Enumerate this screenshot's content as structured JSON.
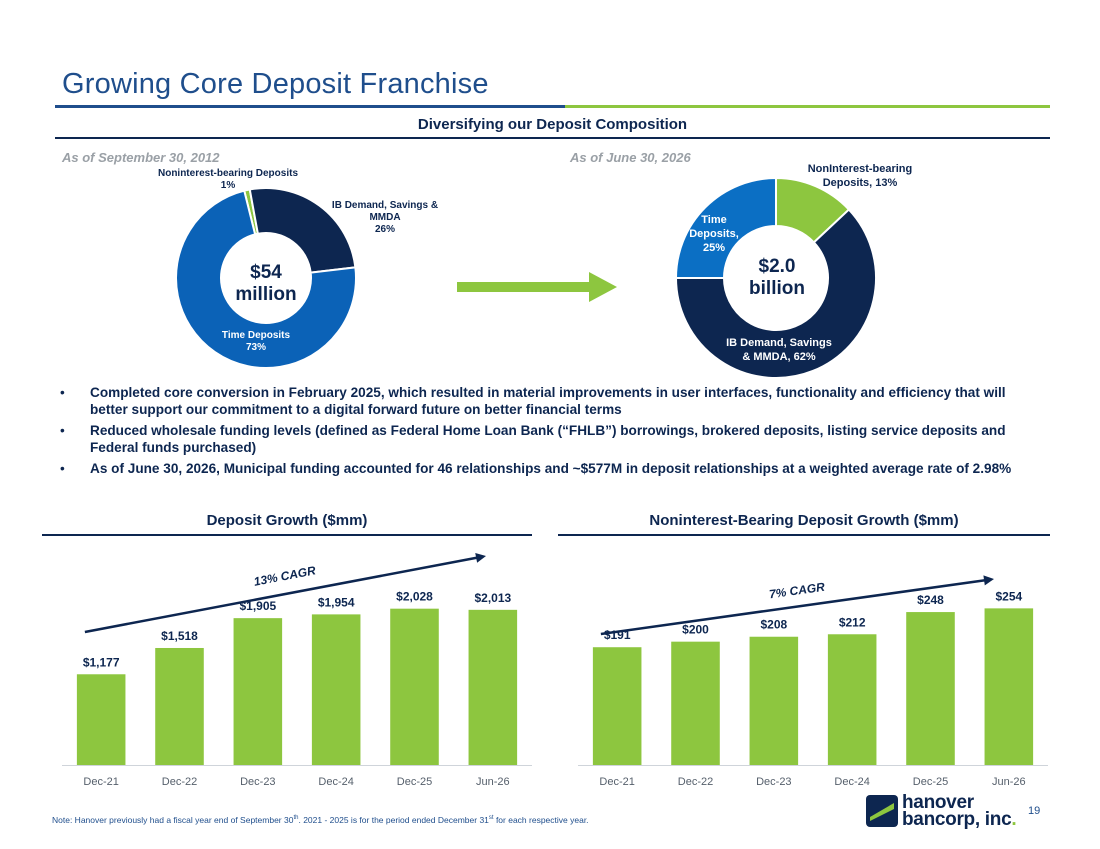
{
  "header": {
    "title": "Growing Core Deposit Franchise"
  },
  "composition": {
    "heading": "Diversifying our Deposit Composition",
    "left": {
      "as_of": "As of September 30, 2012",
      "center": [
        "$54",
        "million"
      ],
      "slices": [
        {
          "name": "Noninterest-bearing Deposits",
          "pct": 1,
          "pct_label": "1%",
          "color": "#8dc63f"
        },
        {
          "name": "IB Demand, Savings & MMDA",
          "pct": 26,
          "pct_label": "26%",
          "color": "#0d2650"
        },
        {
          "name": "Time Deposits",
          "pct": 73,
          "pct_label": "73%",
          "color": "#0b62b7"
        }
      ],
      "labels": {
        "nib_line1": "Noninterest-bearing Deposits",
        "nib_line2": "1%",
        "ib_line1": "IB Demand, Savings &",
        "ib_line2": "MMDA",
        "ib_line3": "26%",
        "td_line1": "Time Deposits",
        "td_line2": "73%"
      }
    },
    "right": {
      "as_of": "As of June 30, 2026",
      "center": [
        "$2.0",
        "billion"
      ],
      "slices": [
        {
          "name": "NonInterest-bearing Deposits",
          "pct": 13,
          "pct_label": "13%",
          "color": "#8dc63f"
        },
        {
          "name": "IB Demand, Savings & MMDA",
          "pct": 62,
          "pct_label": "62%",
          "color": "#0d2650"
        },
        {
          "name": "Time Deposits",
          "pct": 25,
          "pct_label": "25%",
          "color": "#0b6fc4"
        }
      ],
      "labels": {
        "nib_line1": "NonInterest-bearing",
        "nib_line2": "Deposits, 13%",
        "ib_line1": "IB Demand, Savings",
        "ib_line2": "& MMDA, 62%",
        "td_line1": "Time",
        "td_line2": "Deposits,",
        "td_line3": "25%"
      }
    }
  },
  "bullets": [
    "Completed core conversion in February 2025, which resulted in material improvements in user interfaces, functionality and efficiency that will better support our commitment to a digital forward future on better financial terms",
    "Reduced wholesale funding levels (defined as Federal Home Loan Bank (“FHLB”) borrowings, brokered deposits, listing service deposits and Federal funds purchased)",
    "As of June 30, 2026, Municipal funding accounted for 46 relationships and ~$577M in deposit relationships at a weighted average rate of 2.98%"
  ],
  "chart_data": [
    {
      "type": "bar",
      "title": "Deposit Growth ($mm)",
      "categories": [
        "Dec-21",
        "Dec-22",
        "Dec-23",
        "Dec-24",
        "Dec-25",
        "Jun-26"
      ],
      "values": [
        1177,
        1518,
        1905,
        1954,
        2028,
        2013
      ],
      "value_labels": [
        "$1,177",
        "$1,518",
        "$1,905",
        "$1,954",
        "$2,028",
        "$2,013"
      ],
      "annotation": "13% CAGR",
      "ylim": [
        0,
        2400
      ],
      "color": "#8dc63f"
    },
    {
      "type": "bar",
      "title": "Noninterest-Bearing Deposit Growth ($mm)",
      "categories": [
        "Dec-21",
        "Dec-22",
        "Dec-23",
        "Dec-24",
        "Dec-25",
        "Jun-26"
      ],
      "values": [
        191,
        200,
        208,
        212,
        248,
        254
      ],
      "value_labels": [
        "$191",
        "$200",
        "$208",
        "$212",
        "$248",
        "$254"
      ],
      "annotation": "7% CAGR",
      "ylim": [
        0,
        300
      ],
      "color": "#8dc63f"
    }
  ],
  "footer": {
    "note_a": "Note: Hanover previously had a fiscal year end of September 30",
    "note_sup1": "th",
    "note_b": ". 2021 - 2025 is for the period ended December 31",
    "note_sup2": "st",
    "note_c": " for each respective year.",
    "page": "19",
    "logo_line1": "hanover",
    "logo_line2": "bancorp, inc",
    "logo_dot": "."
  }
}
